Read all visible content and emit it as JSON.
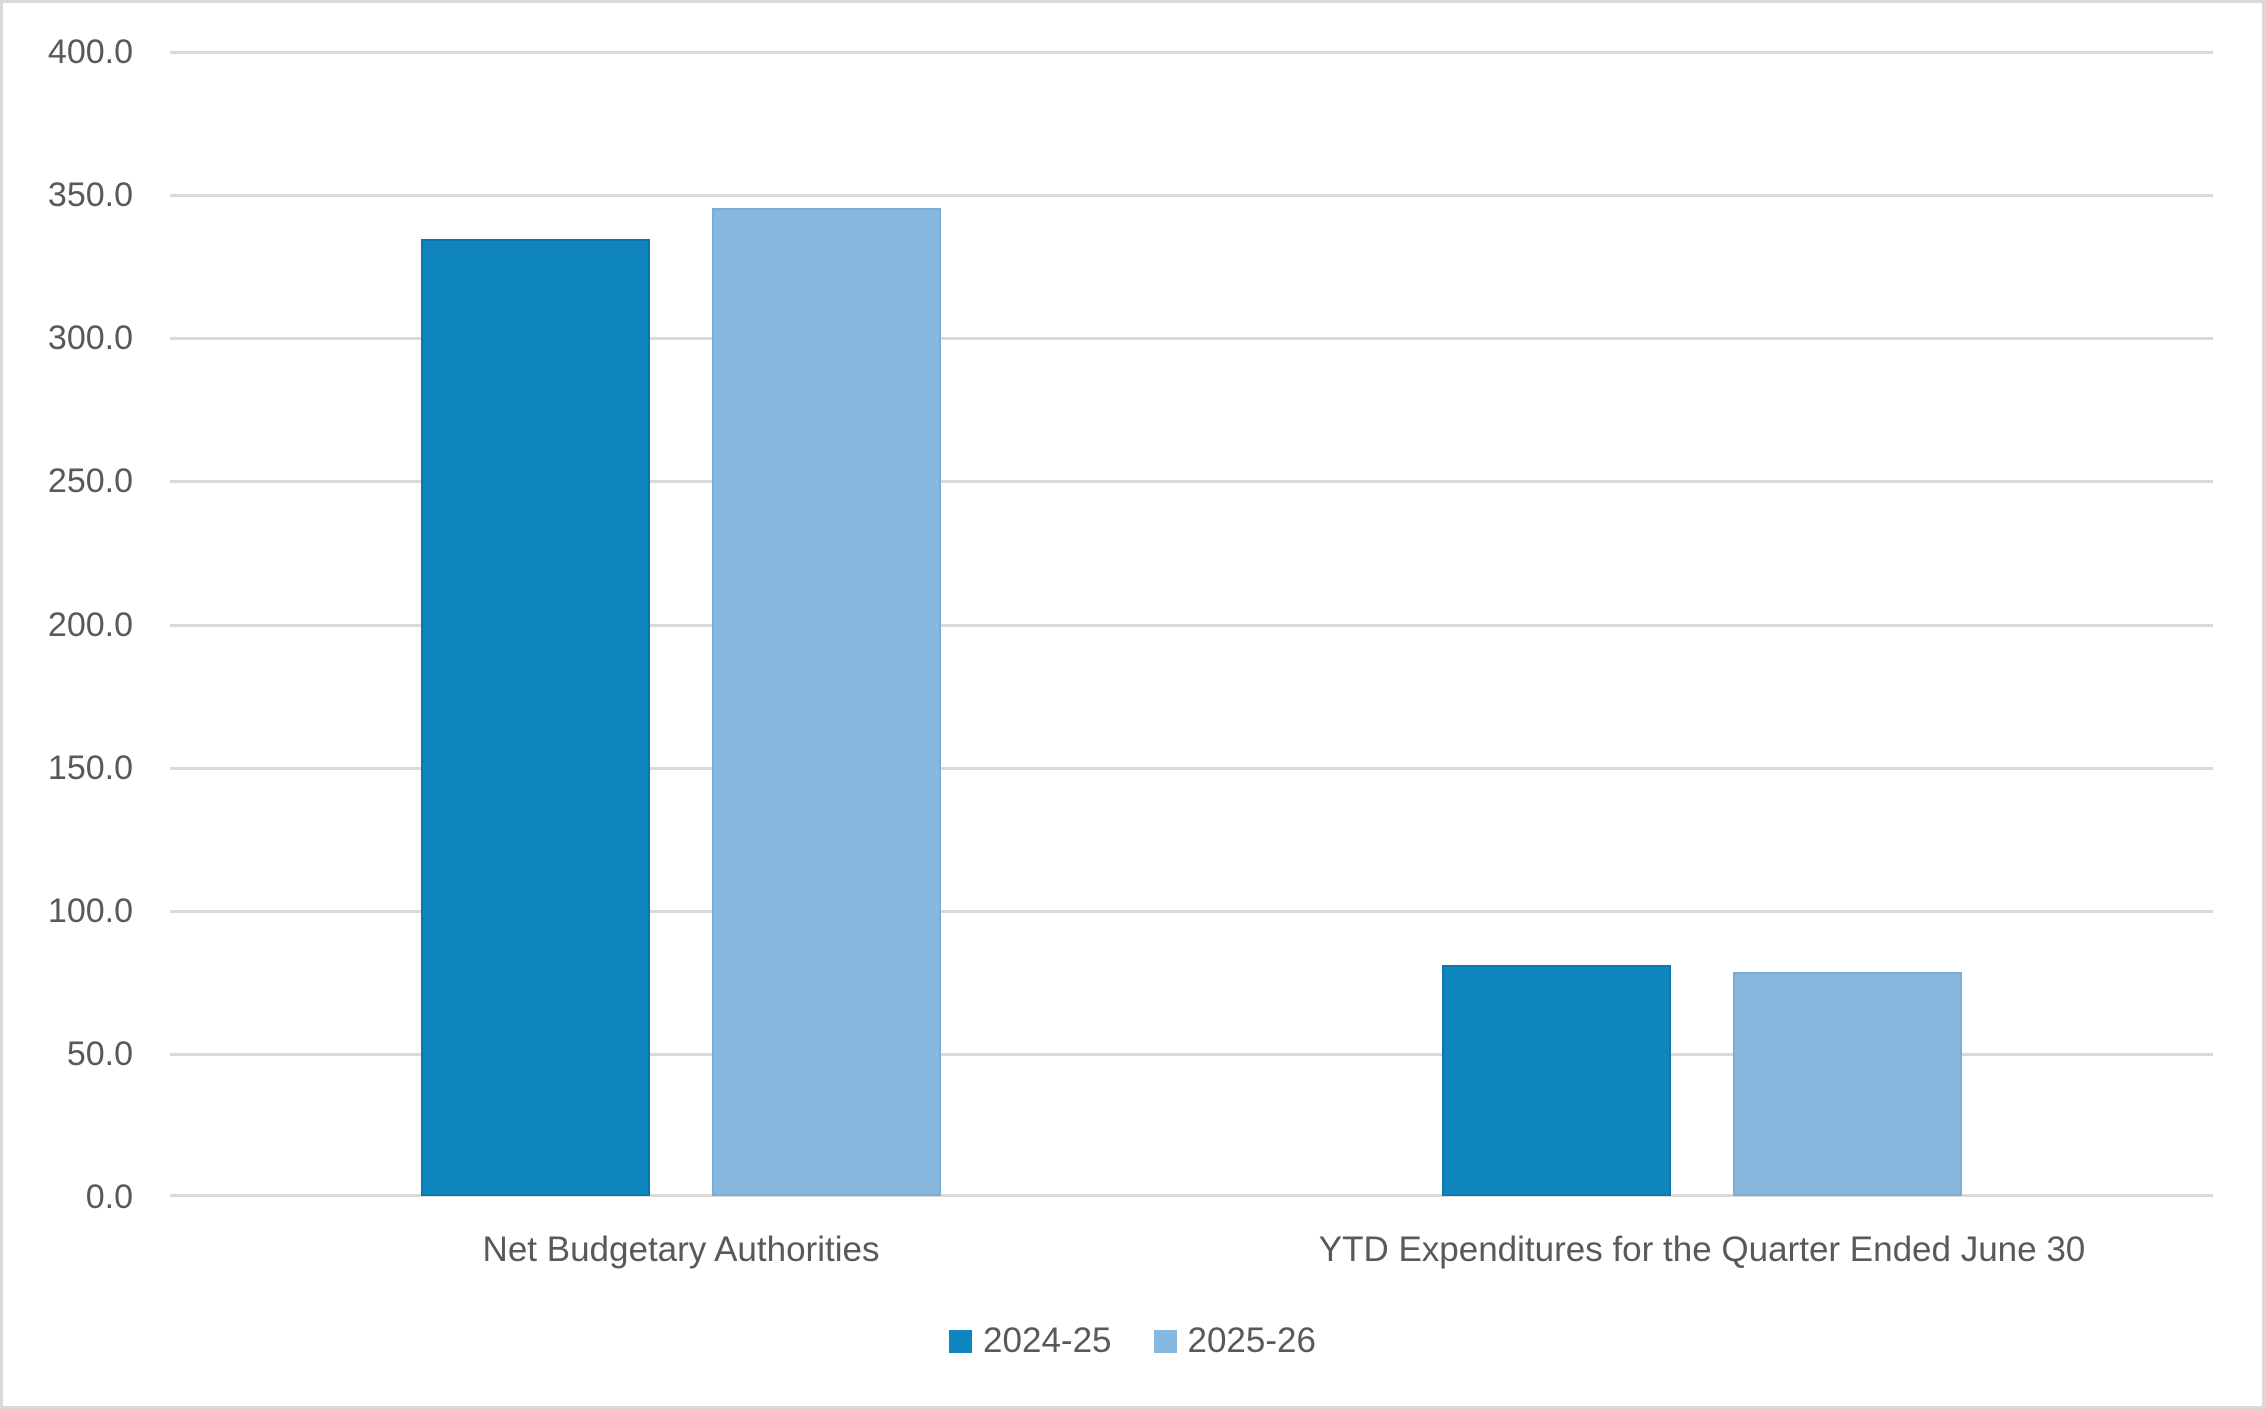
{
  "chart_data": {
    "type": "bar",
    "title": "",
    "categories": [
      "Net Budgetary Authorities",
      "YTD Expenditures for the Quarter Ended June 30"
    ],
    "series": [
      {
        "name": "2024-25",
        "color": "#0E86BD",
        "border_color": "#0C77A8",
        "values": [
          334.4,
          80.6
        ]
      },
      {
        "name": "2025-26",
        "color": "#87B9E0",
        "border_color": "#7AAED7",
        "values": [
          345.1,
          78.2
        ]
      }
    ],
    "ylim": [
      0,
      400
    ],
    "ytick_step": 50,
    "ytick_labels": [
      "400.0",
      "350.0",
      "300.0",
      "250.0",
      "200.0",
      "150.0",
      "100.0",
      "50.0",
      "0.0"
    ],
    "grid": "horizontal",
    "legend_position": "bottom"
  },
  "style": {
    "background": "#FFFFFF",
    "border_color": "#D9D9D9",
    "grid_color": "#D9D9D9",
    "axis_line_color": "#D9D9D9",
    "text_color": "#595959"
  }
}
